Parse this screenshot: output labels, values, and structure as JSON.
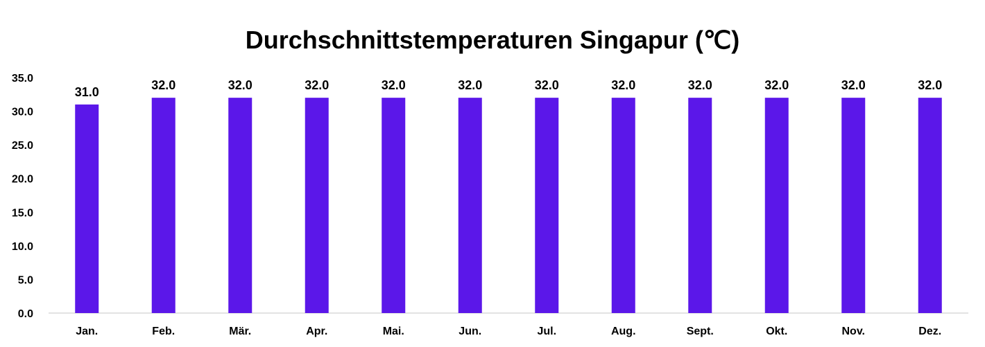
{
  "chart_data": {
    "type": "bar",
    "title": "Durchschnittstemperaturen Singapur (℃)",
    "xlabel": "",
    "ylabel": "",
    "categories": [
      "Jan.",
      "Feb.",
      "Mär.",
      "Apr.",
      "Mai.",
      "Jun.",
      "Jul.",
      "Aug.",
      "Sept.",
      "Okt.",
      "Nov.",
      "Dez."
    ],
    "values": [
      31.0,
      32.0,
      32.0,
      32.0,
      32.0,
      32.0,
      32.0,
      32.0,
      32.0,
      32.0,
      32.0,
      32.0
    ],
    "data_labels": [
      "31.0",
      "32.0",
      "32.0",
      "32.0",
      "32.0",
      "32.0",
      "32.0",
      "32.0",
      "32.0",
      "32.0",
      "32.0",
      "32.0"
    ],
    "ylim": [
      0,
      35
    ],
    "yticks": [
      "0.0",
      "5.0",
      "10.0",
      "15.0",
      "20.0",
      "25.0",
      "30.0",
      "35.0"
    ],
    "grid": false,
    "legend": "none",
    "bar_color": "#5b17e9",
    "axis_color": "#d9d9d9"
  }
}
